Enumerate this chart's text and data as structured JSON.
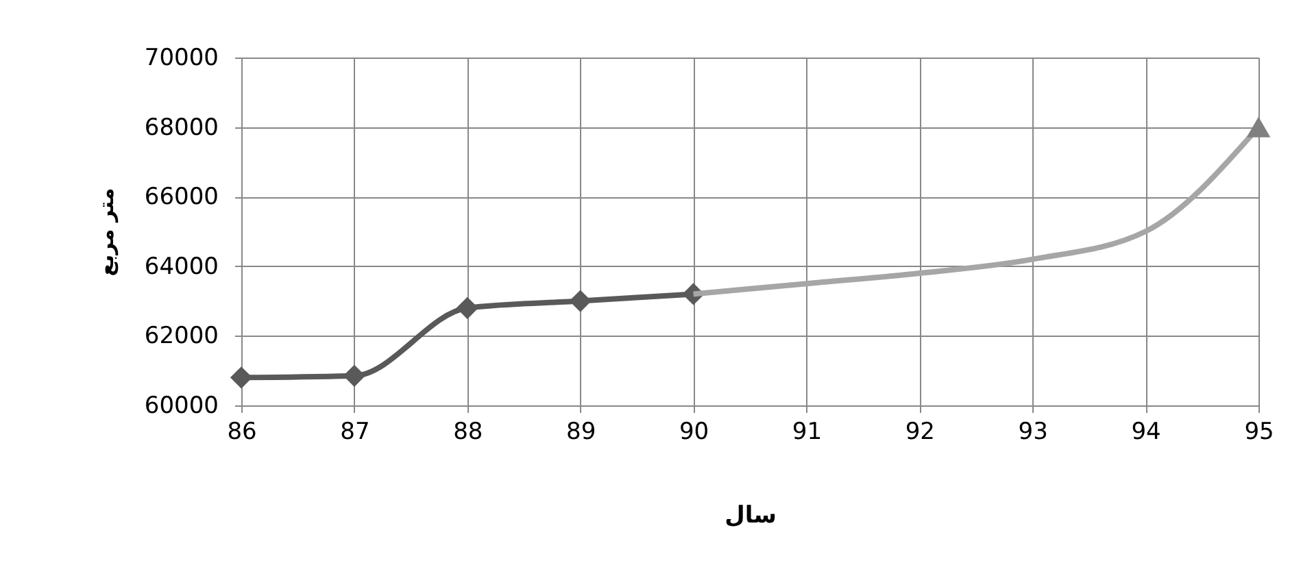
{
  "chart_data": {
    "type": "line",
    "xlabel": "سال",
    "ylabel": "متر مربع",
    "xlim": [
      86,
      95
    ],
    "xticks": [
      86,
      87,
      88,
      89,
      90,
      91,
      92,
      93,
      94,
      95
    ],
    "ylim": [
      60000,
      70000
    ],
    "yticks": [
      60000,
      62000,
      64000,
      66000,
      68000,
      70000
    ],
    "grid": true,
    "line_style": "solid",
    "series": [
      {
        "color": "#595959",
        "marker": "diamond",
        "x": [
          86,
          87,
          88,
          89,
          90
        ],
        "values": [
          60800,
          60850,
          62800,
          63000,
          63200
        ]
      },
      {
        "color": "#a6a6a6",
        "marker": "none",
        "x": [
          90,
          91,
          92,
          93,
          94,
          95
        ],
        "values": [
          63200,
          63500,
          63800,
          64200,
          65000,
          68000
        ]
      },
      {
        "type": "scatter",
        "color": "#808080",
        "marker": "triangle",
        "x": [
          95
        ],
        "values": [
          68000
        ]
      }
    ]
  }
}
